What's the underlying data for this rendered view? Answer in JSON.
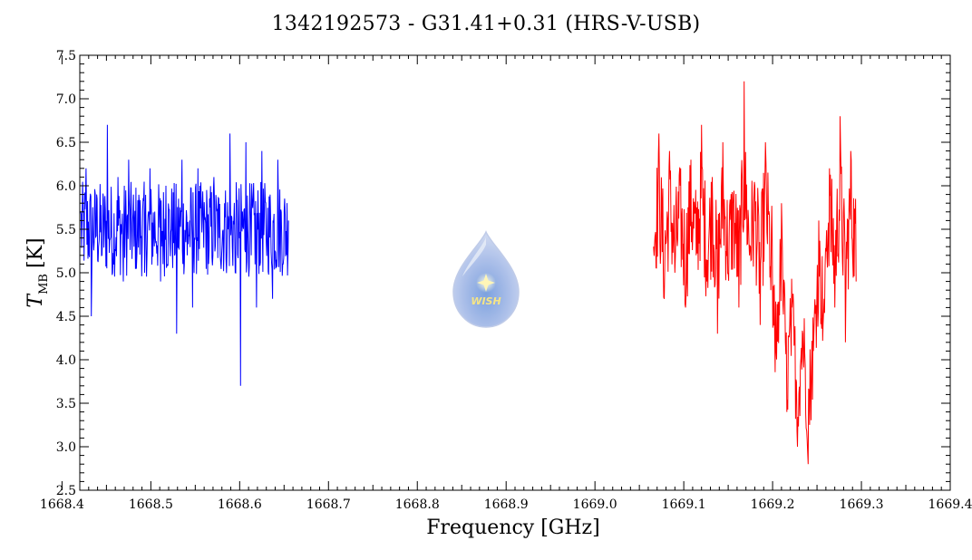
{
  "chart_data": {
    "type": "line",
    "title": "1342192573 - G31.41+0.31 (HRS-V-USB)",
    "xlabel": "Frequency [GHz]",
    "ylabel_main": "T",
    "ylabel_sub": "MB",
    "ylabel_unit": "[K]",
    "xlim": [
      1668.42,
      1669.4
    ],
    "ylim": [
      2.5,
      7.5
    ],
    "xticks": [
      {
        "value": 1668.4,
        "label": "1668.4"
      },
      {
        "value": 1668.5,
        "label": "1668.5"
      },
      {
        "value": 1668.6,
        "label": "1668.6"
      },
      {
        "value": 1668.7,
        "label": "1668.7"
      },
      {
        "value": 1668.8,
        "label": "1668.8"
      },
      {
        "value": 1668.9,
        "label": "1668.9"
      },
      {
        "value": 1669.0,
        "label": "1669.0"
      },
      {
        "value": 1669.1,
        "label": "1669.1"
      },
      {
        "value": 1669.2,
        "label": "1669.2"
      },
      {
        "value": 1669.3,
        "label": "1669.3"
      },
      {
        "value": 1669.4,
        "label": "1669.4"
      }
    ],
    "yticks": [
      {
        "value": 2.5,
        "label": "2.5"
      },
      {
        "value": 3.0,
        "label": "3.0"
      },
      {
        "value": 3.5,
        "label": "3.5"
      },
      {
        "value": 4.0,
        "label": "4.0"
      },
      {
        "value": 4.5,
        "label": "4.5"
      },
      {
        "value": 5.0,
        "label": "5.0"
      },
      {
        "value": 5.5,
        "label": "5.5"
      },
      {
        "value": 6.0,
        "label": "6.0"
      },
      {
        "value": 6.5,
        "label": "6.5"
      },
      {
        "value": 7.0,
        "label": "7.0"
      },
      {
        "value": 7.5,
        "label": "7.5"
      }
    ],
    "grid": false,
    "series": [
      {
        "color": "#0000ff",
        "x": [
          1668.421,
          1668.427,
          1668.433,
          1668.439,
          1668.445,
          1668.451,
          1668.457,
          1668.463,
          1668.469,
          1668.475,
          1668.481,
          1668.487,
          1668.493,
          1668.499,
          1668.505,
          1668.511,
          1668.517,
          1668.523,
          1668.529,
          1668.535,
          1668.541,
          1668.547,
          1668.553,
          1668.559,
          1668.565,
          1668.571,
          1668.577,
          1668.583,
          1668.589,
          1668.595,
          1668.601,
          1668.607,
          1668.613,
          1668.619,
          1668.625,
          1668.631,
          1668.637,
          1668.643,
          1668.649,
          1668.655
        ],
        "y": [
          5.7,
          6.2,
          4.5,
          5.9,
          5.2,
          6.7,
          5.0,
          6.1,
          4.9,
          6.3,
          5.3,
          5.8,
          5.0,
          6.2,
          5.4,
          4.9,
          6.0,
          5.5,
          4.3,
          6.3,
          5.2,
          4.6,
          6.2,
          5.6,
          5.1,
          6.1,
          5.4,
          5.8,
          6.6,
          5.0,
          3.7,
          6.5,
          5.2,
          4.6,
          6.4,
          5.4,
          4.7,
          6.3,
          5.1,
          5.6
        ]
      },
      {
        "color": "#ff0000",
        "x": [
          1669.066,
          1669.072,
          1669.078,
          1669.084,
          1669.09,
          1669.096,
          1669.102,
          1669.108,
          1669.114,
          1669.12,
          1669.126,
          1669.132,
          1669.138,
          1669.144,
          1669.15,
          1669.156,
          1669.162,
          1669.168,
          1669.174,
          1669.18,
          1669.186,
          1669.192,
          1669.198,
          1669.204,
          1669.21,
          1669.216,
          1669.222,
          1669.228,
          1669.234,
          1669.24,
          1669.246,
          1669.252,
          1669.258,
          1669.264,
          1669.27,
          1669.276,
          1669.282,
          1669.288,
          1669.294
        ],
        "y": [
          5.3,
          6.6,
          4.7,
          6.4,
          5.0,
          6.0,
          4.6,
          6.3,
          5.2,
          6.7,
          4.9,
          6.1,
          4.3,
          6.5,
          5.0,
          5.9,
          4.6,
          7.2,
          5.2,
          6.0,
          4.4,
          6.5,
          4.8,
          4.1,
          5.8,
          3.4,
          4.6,
          3.0,
          4.3,
          2.8,
          4.1,
          5.6,
          4.7,
          6.2,
          4.6,
          6.8,
          4.2,
          6.4,
          4.9
        ]
      }
    ],
    "logo_text": "WISH"
  }
}
